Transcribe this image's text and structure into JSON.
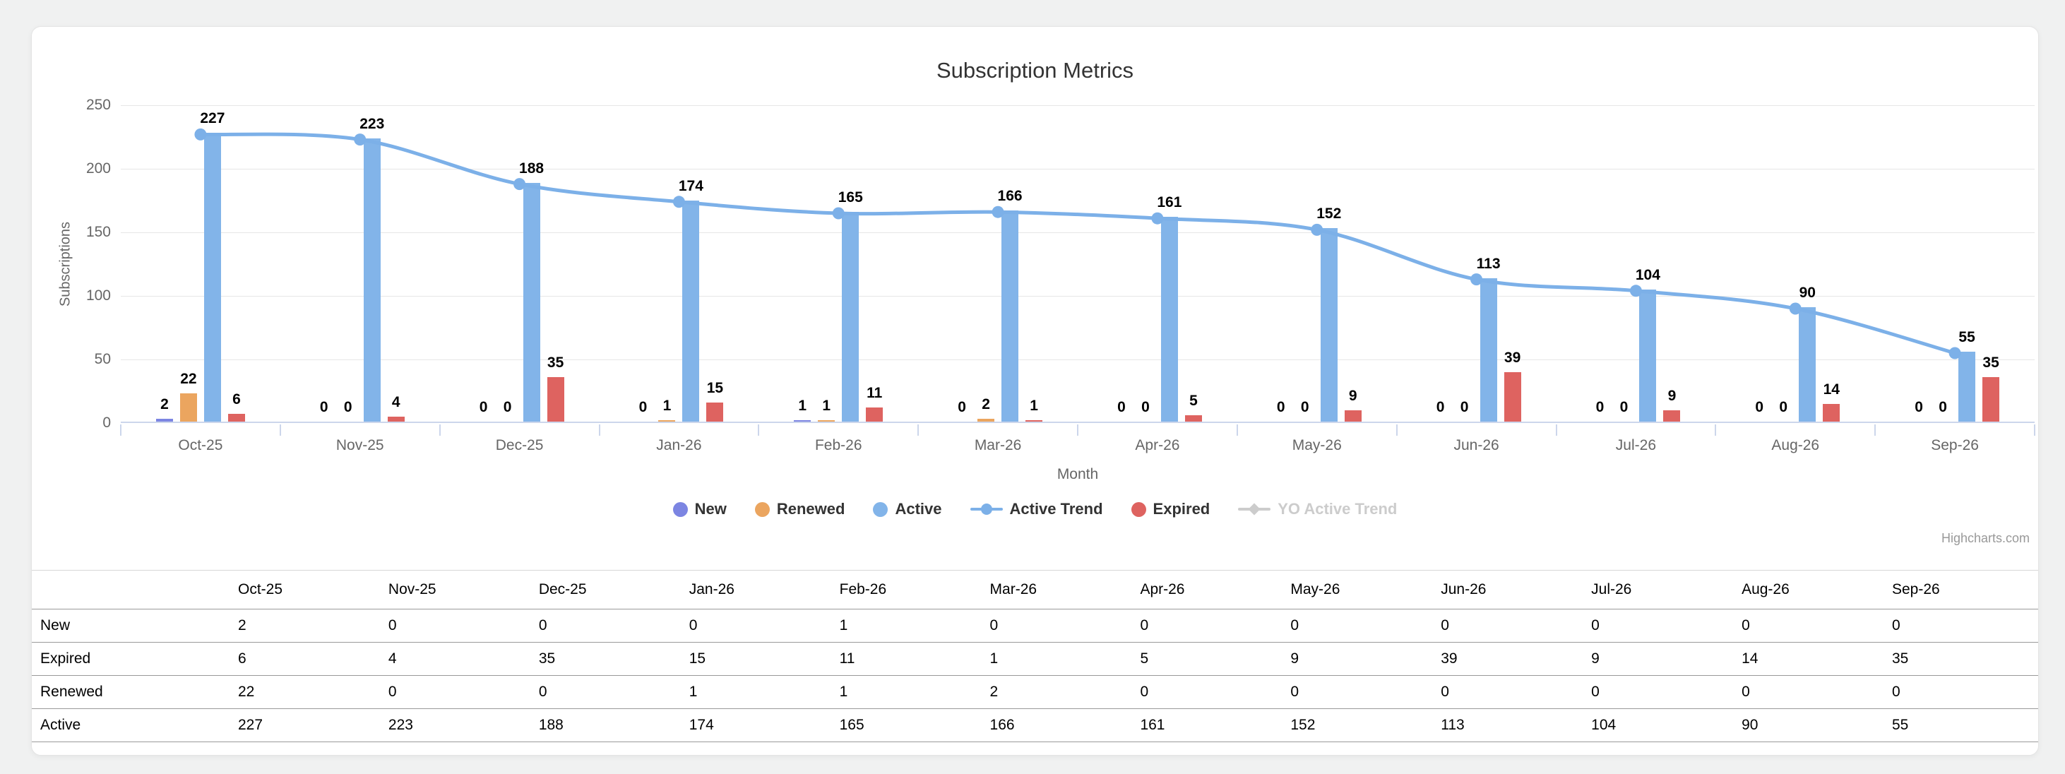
{
  "chart_data": {
    "type": "combo-column-spline",
    "title": "Subscription Metrics",
    "xlabel": "Month",
    "ylabel": "Subscriptions",
    "ylim": [
      0,
      250
    ],
    "yticks": [
      0,
      50,
      100,
      150,
      200,
      250
    ],
    "grid": true,
    "legend_position": "bottom-center",
    "categories": [
      "Oct-25",
      "Nov-25",
      "Dec-25",
      "Jan-26",
      "Feb-26",
      "Mar-26",
      "Apr-26",
      "May-26",
      "Jun-26",
      "Jul-26",
      "Aug-26",
      "Sep-26"
    ],
    "series": [
      {
        "name": "New",
        "type": "column",
        "color": "#7C85E2",
        "values": [
          2,
          0,
          0,
          0,
          1,
          0,
          0,
          0,
          0,
          0,
          0,
          0
        ]
      },
      {
        "name": "Renewed",
        "type": "column",
        "color": "#EBA55F",
        "values": [
          22,
          0,
          0,
          1,
          1,
          2,
          0,
          0,
          0,
          0,
          0,
          0
        ]
      },
      {
        "name": "Active",
        "type": "column",
        "color": "#82B4E9",
        "values": [
          227,
          223,
          188,
          174,
          165,
          166,
          161,
          152,
          113,
          104,
          90,
          55
        ]
      },
      {
        "name": "Expired",
        "type": "column",
        "color": "#DE6360",
        "values": [
          6,
          4,
          35,
          15,
          11,
          1,
          5,
          9,
          39,
          9,
          14,
          35
        ]
      },
      {
        "name": "Active Trend",
        "type": "spline",
        "color": "#7CB0E8",
        "values": [
          227,
          223,
          188,
          174,
          165,
          166,
          161,
          152,
          113,
          104,
          90,
          55
        ]
      },
      {
        "name": "YO Active Trend",
        "type": "spline",
        "color": "#CCCCCC",
        "hidden": true
      }
    ],
    "legend": [
      {
        "label": "New",
        "marker": "circle",
        "color": "#7C85E2",
        "disabled": false
      },
      {
        "label": "Renewed",
        "marker": "circle",
        "color": "#EBA55F",
        "disabled": false
      },
      {
        "label": "Active",
        "marker": "circle",
        "color": "#82B4E9",
        "disabled": false
      },
      {
        "label": "Active Trend",
        "marker": "line-circle",
        "color": "#7CB0E8",
        "disabled": false
      },
      {
        "label": "Expired",
        "marker": "circle",
        "color": "#DE6360",
        "disabled": false
      },
      {
        "label": "YO Active Trend",
        "marker": "line-diamond",
        "color": "#CCCCCC",
        "disabled": true
      }
    ],
    "credit": "Highcharts.com",
    "colors": {
      "axis_line": "#CCD6EB",
      "gridline": "#E6E6E6",
      "tick_label": "#666666",
      "title": "#333333"
    }
  },
  "table": {
    "columns": [
      "Oct-25",
      "Nov-25",
      "Dec-25",
      "Jan-26",
      "Feb-26",
      "Mar-26",
      "Apr-26",
      "May-26",
      "Jun-26",
      "Jul-26",
      "Aug-26",
      "Sep-26"
    ],
    "rows": [
      {
        "label": "New",
        "values": [
          2,
          0,
          0,
          0,
          1,
          0,
          0,
          0,
          0,
          0,
          0,
          0
        ]
      },
      {
        "label": "Expired",
        "values": [
          6,
          4,
          35,
          15,
          11,
          1,
          5,
          9,
          39,
          9,
          14,
          35
        ]
      },
      {
        "label": "Renewed",
        "values": [
          22,
          0,
          0,
          1,
          1,
          2,
          0,
          0,
          0,
          0,
          0,
          0
        ]
      },
      {
        "label": "Active",
        "values": [
          227,
          223,
          188,
          174,
          165,
          166,
          161,
          152,
          113,
          104,
          90,
          55
        ]
      }
    ]
  }
}
